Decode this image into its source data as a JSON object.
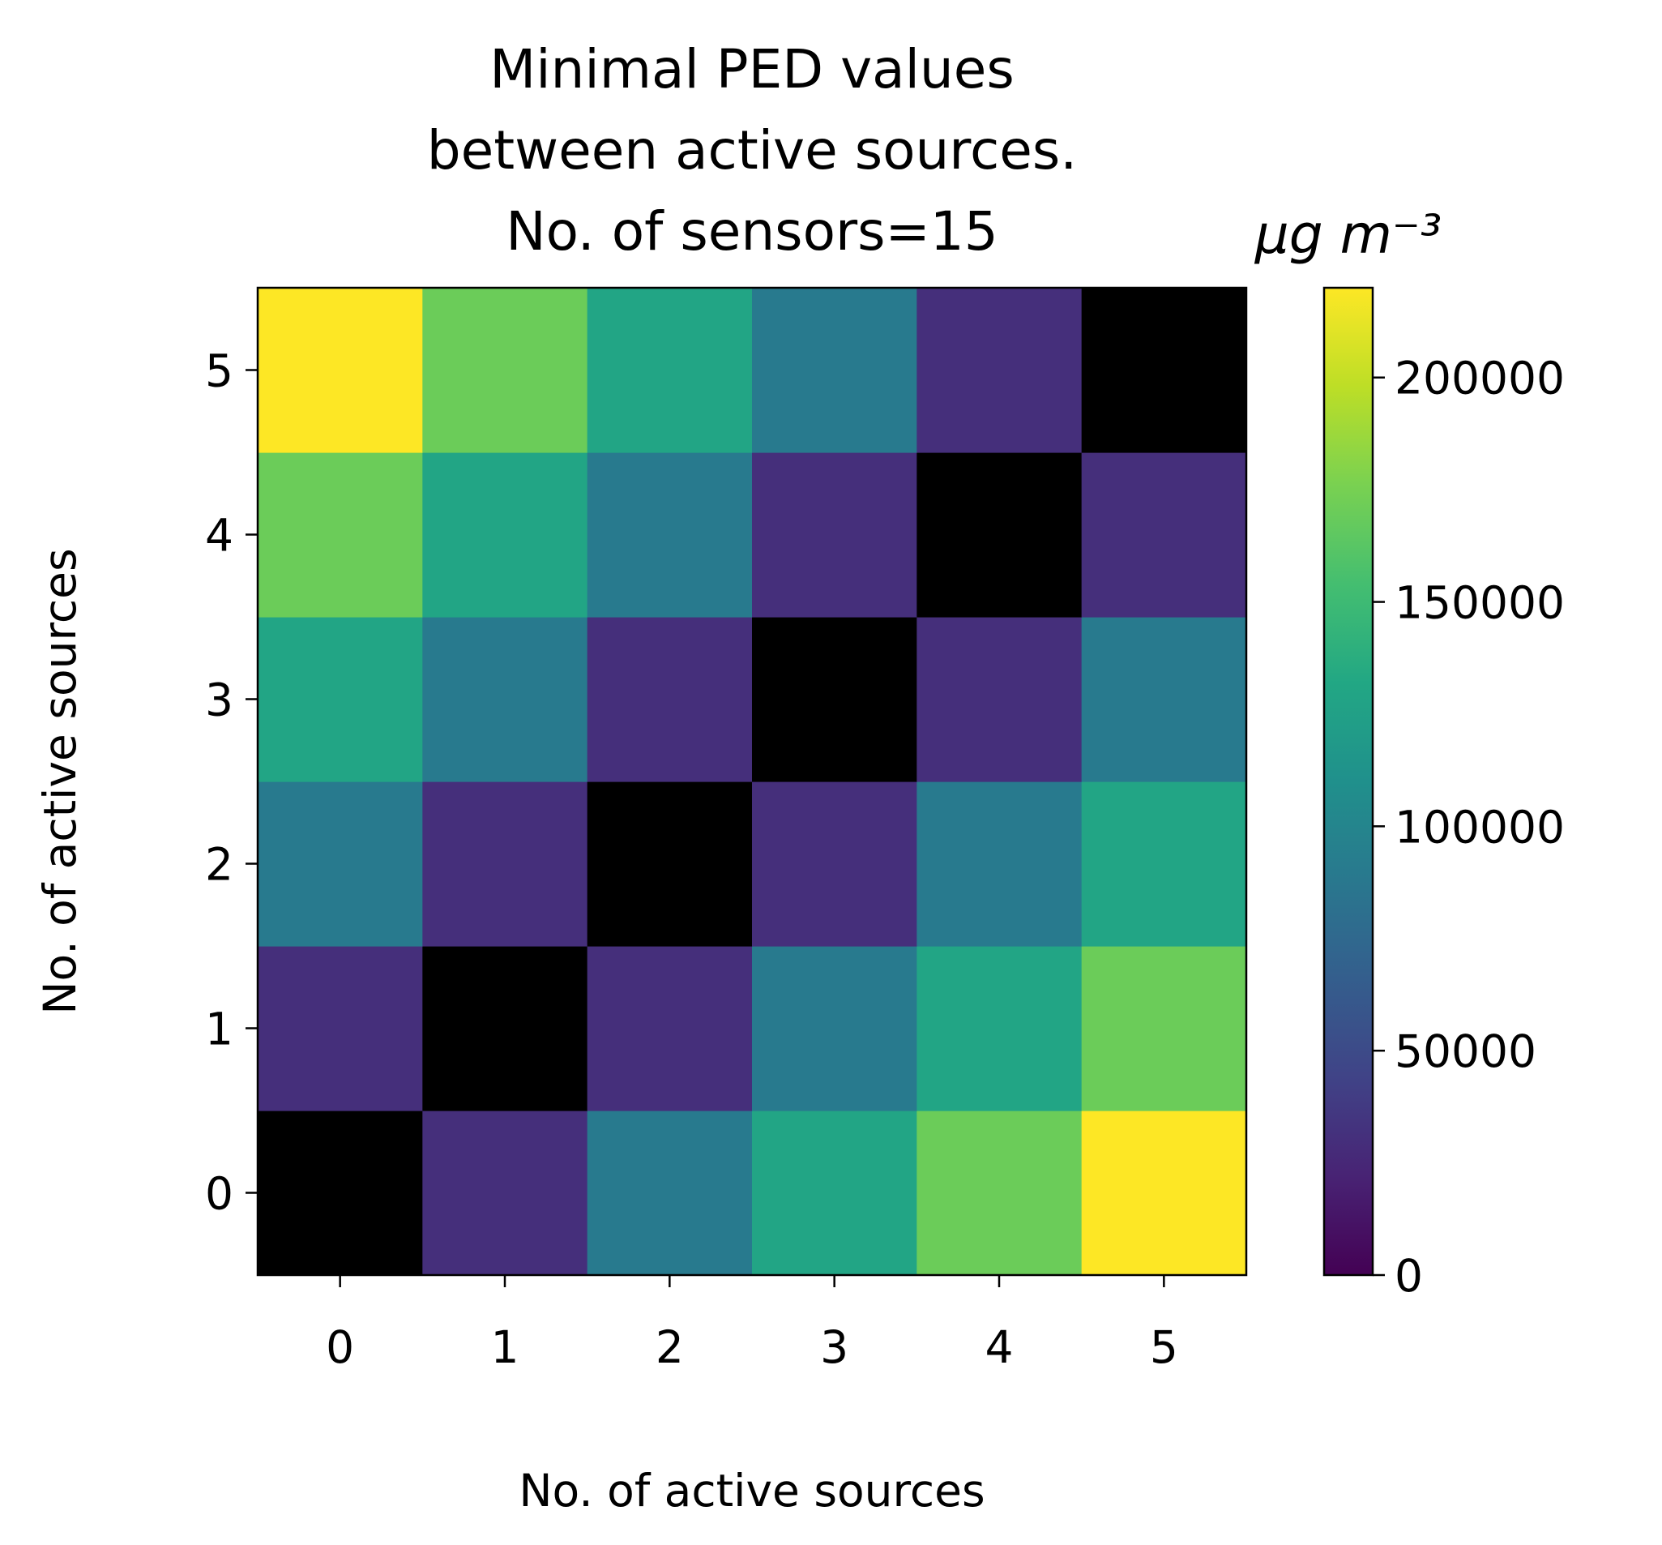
{
  "chart_data": {
    "type": "heatmap",
    "title_lines": [
      "Minimal PED values",
      "between active sources.",
      "No. of sensors=15"
    ],
    "xlabel": "No. of active sources",
    "ylabel": "No. of active sources",
    "x_categories": [
      "0",
      "1",
      "2",
      "3",
      "4",
      "5"
    ],
    "y_categories": [
      "0",
      "1",
      "2",
      "3",
      "4",
      "5"
    ],
    "values": [
      [
        0,
        30000,
        90000,
        130000,
        170000,
        220000
      ],
      [
        30000,
        0,
        30000,
        90000,
        130000,
        170000
      ],
      [
        90000,
        30000,
        0,
        30000,
        90000,
        130000
      ],
      [
        130000,
        90000,
        30000,
        0,
        30000,
        90000
      ],
      [
        170000,
        130000,
        90000,
        30000,
        0,
        30000
      ],
      [
        220000,
        170000,
        130000,
        90000,
        30000,
        0
      ]
    ],
    "masked_value": 0,
    "masked_color": "#000000",
    "colorbar": {
      "label": "μg m⁻³",
      "min": 0,
      "max": 220000,
      "ticks": [
        0,
        50000,
        100000,
        150000,
        200000
      ],
      "tick_labels": [
        "0",
        "50000",
        "100000",
        "150000",
        "200000"
      ],
      "colormap": "viridis"
    },
    "grid": false
  }
}
